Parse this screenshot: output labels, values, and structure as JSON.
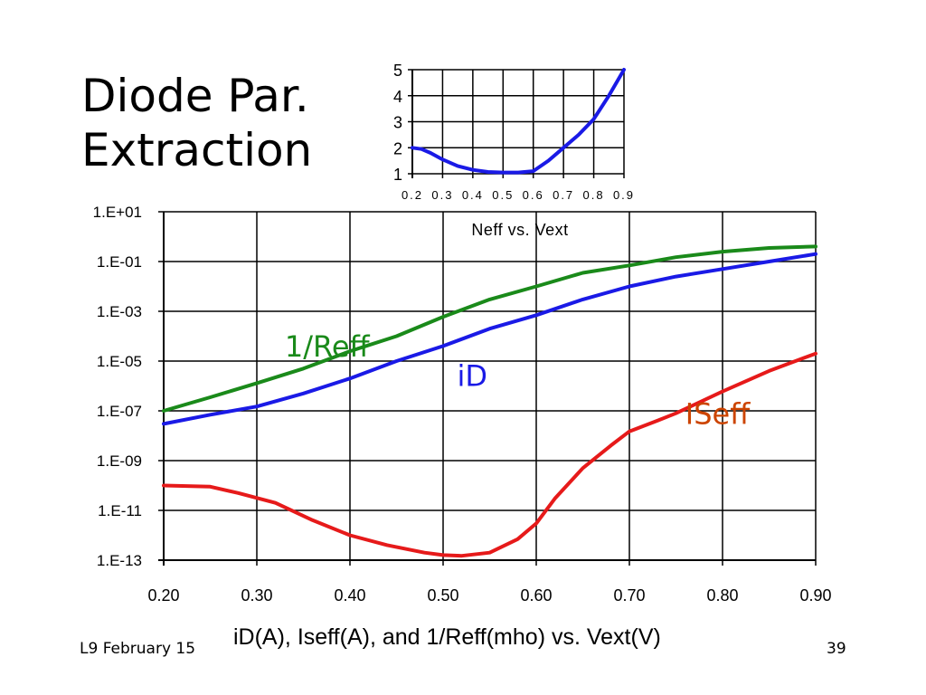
{
  "slide": {
    "title_line1": "Diode Par.",
    "title_line2": "Extraction",
    "caption": "iD(A), Iseff(A), and 1/Reff(mho) vs. Vext(V)",
    "footer_left": "L9 February 15",
    "page_number": "39"
  },
  "chart_data": [
    {
      "type": "line",
      "title": "",
      "xlabel": "",
      "ylabel": "",
      "y_scale": "log",
      "xlim": [
        0.2,
        0.9
      ],
      "ylim": [
        1e-13,
        10
      ],
      "grid": true,
      "x_ticks": [
        0.2,
        0.3,
        0.4,
        0.5,
        0.6,
        0.7,
        0.8,
        0.9
      ],
      "x_tick_labels": [
        "0.20",
        "0.30",
        "0.40",
        "0.50",
        "0.60",
        "0.70",
        "0.80",
        "0.90"
      ],
      "y_ticks": [
        10,
        0.1,
        0.001,
        1e-05,
        1e-07,
        1e-09,
        1e-11,
        1e-13
      ],
      "y_tick_labels": [
        "1.E+01",
        "1.E-01",
        "1.E-03",
        "1.E-05",
        "1.E-07",
        "1.E-09",
        "1.E-11",
        "1.E-13"
      ],
      "series": [
        {
          "name": "1/Reff",
          "color": "#1a8a1a",
          "x": [
            0.2,
            0.25,
            0.3,
            0.35,
            0.4,
            0.45,
            0.5,
            0.55,
            0.6,
            0.65,
            0.7,
            0.75,
            0.8,
            0.85,
            0.9
          ],
          "y": [
            1e-07,
            3.5e-07,
            1.3e-06,
            5e-06,
            2.5e-05,
            0.0001,
            0.0006,
            0.003,
            0.01,
            0.035,
            0.07,
            0.15,
            0.25,
            0.35,
            0.4
          ]
        },
        {
          "name": "iD",
          "color": "#1a1ae6",
          "x": [
            0.2,
            0.25,
            0.3,
            0.35,
            0.4,
            0.45,
            0.5,
            0.55,
            0.6,
            0.65,
            0.7,
            0.75,
            0.8,
            0.85,
            0.9
          ],
          "y": [
            3e-08,
            7e-08,
            1.5e-07,
            5e-07,
            2e-06,
            1e-05,
            4e-05,
            0.0002,
            0.0007,
            0.003,
            0.01,
            0.025,
            0.05,
            0.1,
            0.2
          ]
        },
        {
          "name": "ISeff",
          "color": "#e61a1a",
          "x": [
            0.2,
            0.25,
            0.28,
            0.32,
            0.36,
            0.4,
            0.44,
            0.48,
            0.5,
            0.52,
            0.55,
            0.58,
            0.6,
            0.62,
            0.65,
            0.68,
            0.7,
            0.73,
            0.75,
            0.8,
            0.85,
            0.9
          ],
          "y": [
            1e-10,
            9e-11,
            5e-11,
            2e-11,
            4e-12,
            1e-12,
            4e-13,
            2e-13,
            1.6e-13,
            1.5e-13,
            2e-13,
            7e-13,
            3e-12,
            3e-11,
            5e-10,
            4e-09,
            1.5e-08,
            4e-08,
            8e-08,
            6e-07,
            4e-06,
            2e-05
          ]
        }
      ],
      "annotations": [
        {
          "text": "1/Reff",
          "color": "#1a8a1a",
          "x": 0.33,
          "y": 1.5e-05
        },
        {
          "text": "iD",
          "color": "#1a1ae6",
          "x": 0.515,
          "y": 1e-06
        },
        {
          "text": "ISeff",
          "color": "#cc4400",
          "x": 0.76,
          "y": 3e-08
        }
      ]
    },
    {
      "type": "line",
      "title": "Neff vs. Vext",
      "xlim": [
        0.2,
        0.9
      ],
      "ylim": [
        1,
        5
      ],
      "grid": true,
      "x_ticks": [
        0.2,
        0.3,
        0.4,
        0.5,
        0.6,
        0.7,
        0.8,
        0.9
      ],
      "x_tick_labels": [
        "0.2",
        "0.3",
        "0.4",
        "0.5",
        "0.6",
        "0.7",
        "0.8",
        "0.9"
      ],
      "y_ticks": [
        1,
        2,
        3,
        4,
        5
      ],
      "y_tick_labels": [
        "1",
        "2",
        "3",
        "4",
        "5"
      ],
      "series": [
        {
          "color": "#1a1ae6",
          "x": [
            0.2,
            0.23,
            0.26,
            0.3,
            0.35,
            0.4,
            0.45,
            0.5,
            0.55,
            0.6,
            0.65,
            0.7,
            0.75,
            0.8,
            0.85,
            0.9
          ],
          "y": [
            2.0,
            1.95,
            1.8,
            1.55,
            1.3,
            1.15,
            1.07,
            1.05,
            1.05,
            1.1,
            1.5,
            2.0,
            2.5,
            3.1,
            4.0,
            5.0
          ]
        }
      ]
    }
  ]
}
